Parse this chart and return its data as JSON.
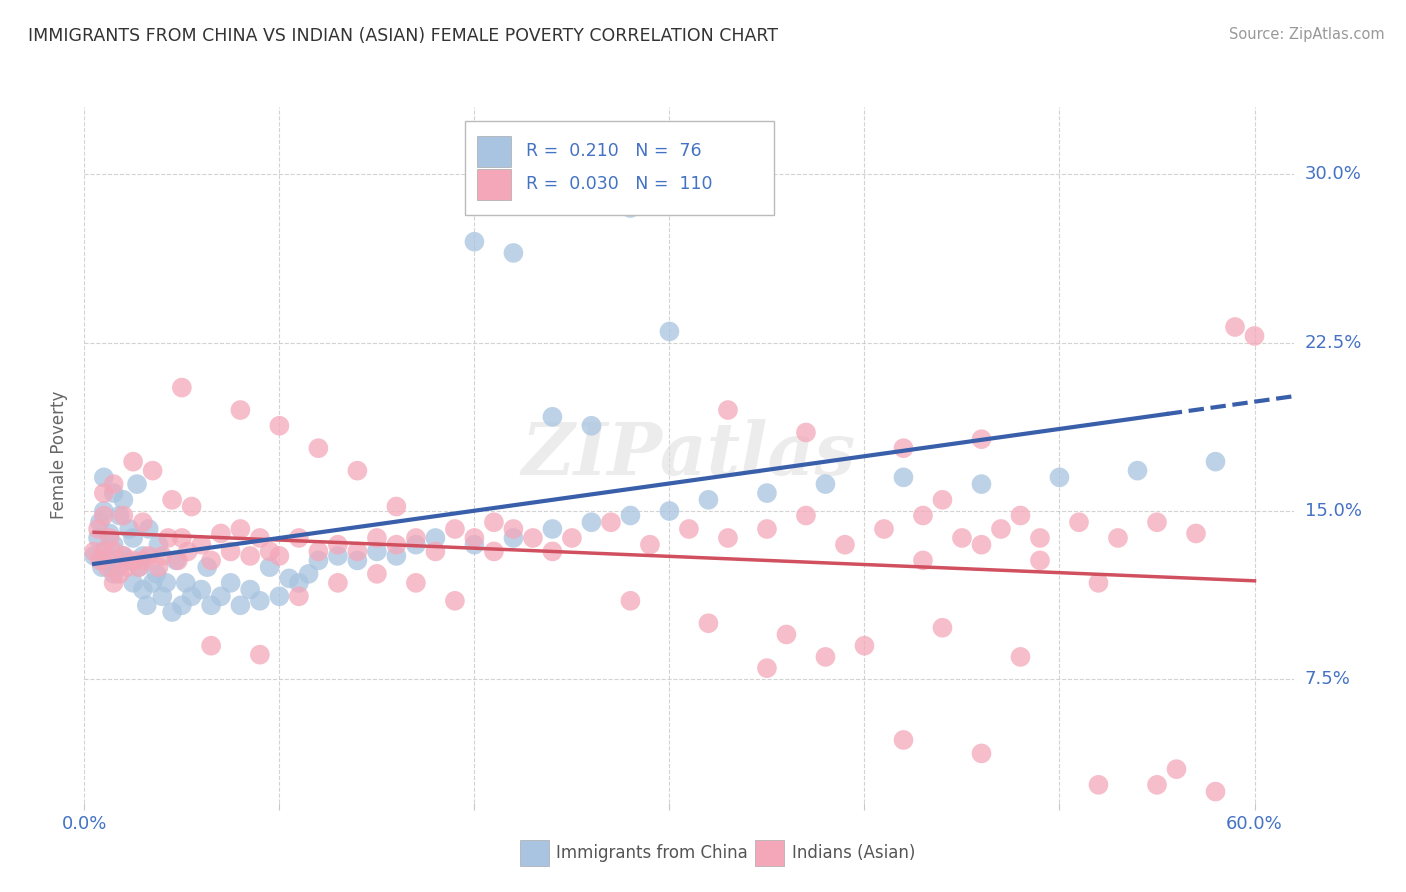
{
  "title": "IMMIGRANTS FROM CHINA VS INDIAN (ASIAN) FEMALE POVERTY CORRELATION CHART",
  "source": "Source: ZipAtlas.com",
  "ylabel": "Female Poverty",
  "legend_label1": "Immigrants from China",
  "legend_label2": "Indians (Asian)",
  "R1": "0.210",
  "N1": "76",
  "R2": "0.030",
  "N2": "110",
  "color_china": "#a8c4e0",
  "color_india": "#f4a7b9",
  "line_color_china": "#3a5faa",
  "line_color_india": "#d05060",
  "text_color": "#4472c4",
  "background_color": "#ffffff",
  "grid_color": "#c8c8c8",
  "xlim": [
    0.0,
    0.62
  ],
  "ylim": [
    0.02,
    0.33
  ],
  "yticks": [
    0.075,
    0.15,
    0.225,
    0.3
  ],
  "xtick_positions": [
    0.0,
    0.1,
    0.2,
    0.3,
    0.4,
    0.5,
    0.6
  ],
  "china_x": [
    0.005,
    0.007,
    0.008,
    0.009,
    0.01,
    0.01,
    0.01,
    0.012,
    0.013,
    0.015,
    0.015,
    0.015,
    0.017,
    0.018,
    0.02,
    0.02,
    0.022,
    0.023,
    0.025,
    0.025,
    0.027,
    0.028,
    0.03,
    0.03,
    0.032,
    0.033,
    0.035,
    0.037,
    0.038,
    0.04,
    0.042,
    0.045,
    0.047,
    0.05,
    0.052,
    0.055,
    0.06,
    0.063,
    0.065,
    0.07,
    0.075,
    0.08,
    0.085,
    0.09,
    0.095,
    0.1,
    0.105,
    0.11,
    0.115,
    0.12,
    0.13,
    0.14,
    0.15,
    0.16,
    0.17,
    0.18,
    0.2,
    0.22,
    0.24,
    0.26,
    0.28,
    0.3,
    0.32,
    0.35,
    0.38,
    0.42,
    0.46,
    0.5,
    0.54,
    0.58,
    0.2,
    0.22,
    0.24,
    0.26,
    0.28,
    0.3
  ],
  "china_y": [
    0.13,
    0.138,
    0.145,
    0.125,
    0.132,
    0.15,
    0.165,
    0.128,
    0.14,
    0.122,
    0.135,
    0.158,
    0.125,
    0.148,
    0.13,
    0.155,
    0.128,
    0.142,
    0.118,
    0.138,
    0.162,
    0.125,
    0.115,
    0.13,
    0.108,
    0.142,
    0.118,
    0.122,
    0.135,
    0.112,
    0.118,
    0.105,
    0.128,
    0.108,
    0.118,
    0.112,
    0.115,
    0.125,
    0.108,
    0.112,
    0.118,
    0.108,
    0.115,
    0.11,
    0.125,
    0.112,
    0.12,
    0.118,
    0.122,
    0.128,
    0.13,
    0.128,
    0.132,
    0.13,
    0.135,
    0.138,
    0.135,
    0.138,
    0.142,
    0.145,
    0.148,
    0.15,
    0.155,
    0.158,
    0.162,
    0.165,
    0.162,
    0.165,
    0.168,
    0.172,
    0.27,
    0.265,
    0.192,
    0.188,
    0.285,
    0.23
  ],
  "india_x": [
    0.005,
    0.007,
    0.008,
    0.01,
    0.01,
    0.01,
    0.012,
    0.013,
    0.015,
    0.015,
    0.015,
    0.018,
    0.02,
    0.02,
    0.022,
    0.025,
    0.025,
    0.028,
    0.03,
    0.03,
    0.033,
    0.035,
    0.038,
    0.04,
    0.043,
    0.045,
    0.048,
    0.05,
    0.053,
    0.055,
    0.06,
    0.065,
    0.07,
    0.075,
    0.08,
    0.085,
    0.09,
    0.095,
    0.1,
    0.11,
    0.12,
    0.13,
    0.14,
    0.15,
    0.16,
    0.17,
    0.18,
    0.19,
    0.2,
    0.21,
    0.22,
    0.23,
    0.24,
    0.25,
    0.27,
    0.29,
    0.31,
    0.33,
    0.35,
    0.37,
    0.39,
    0.41,
    0.43,
    0.45,
    0.47,
    0.49,
    0.51,
    0.53,
    0.55,
    0.57,
    0.59,
    0.6,
    0.065,
    0.09,
    0.11,
    0.13,
    0.15,
    0.17,
    0.19,
    0.21,
    0.28,
    0.32,
    0.36,
    0.4,
    0.44,
    0.48,
    0.33,
    0.37,
    0.42,
    0.46,
    0.05,
    0.08,
    0.1,
    0.12,
    0.14,
    0.16,
    0.35,
    0.38,
    0.42,
    0.46,
    0.43,
    0.46,
    0.49,
    0.52,
    0.55,
    0.58,
    0.44,
    0.48,
    0.52,
    0.56
  ],
  "india_y": [
    0.132,
    0.142,
    0.128,
    0.132,
    0.148,
    0.158,
    0.125,
    0.138,
    0.118,
    0.132,
    0.162,
    0.122,
    0.13,
    0.148,
    0.125,
    0.128,
    0.172,
    0.125,
    0.128,
    0.145,
    0.13,
    0.168,
    0.125,
    0.13,
    0.138,
    0.155,
    0.128,
    0.138,
    0.132,
    0.152,
    0.135,
    0.128,
    0.14,
    0.132,
    0.142,
    0.13,
    0.138,
    0.132,
    0.13,
    0.138,
    0.132,
    0.135,
    0.132,
    0.138,
    0.135,
    0.138,
    0.132,
    0.142,
    0.138,
    0.132,
    0.142,
    0.138,
    0.132,
    0.138,
    0.145,
    0.135,
    0.142,
    0.138,
    0.142,
    0.148,
    0.135,
    0.142,
    0.148,
    0.138,
    0.142,
    0.138,
    0.145,
    0.138,
    0.145,
    0.14,
    0.232,
    0.228,
    0.09,
    0.086,
    0.112,
    0.118,
    0.122,
    0.118,
    0.11,
    0.145,
    0.11,
    0.1,
    0.095,
    0.09,
    0.098,
    0.085,
    0.195,
    0.185,
    0.178,
    0.182,
    0.205,
    0.195,
    0.188,
    0.178,
    0.168,
    0.152,
    0.08,
    0.085,
    0.048,
    0.042,
    0.128,
    0.135,
    0.128,
    0.118,
    0.028,
    0.025,
    0.155,
    0.148,
    0.028,
    0.035
  ]
}
